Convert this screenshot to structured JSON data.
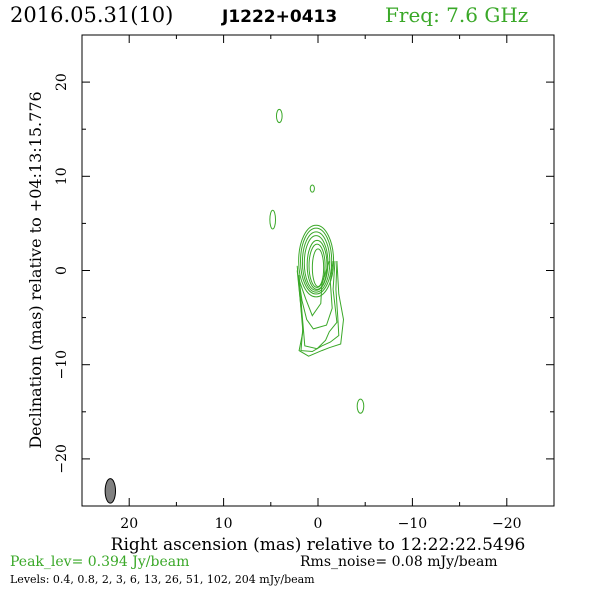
{
  "header": {
    "date": "2016.05.31(10)",
    "source": "J1222+0413",
    "freq": "Freq: 7.6 GHz"
  },
  "footer": {
    "peak": "Peak_lev=  0.394 Jy/beam",
    "rms": "Rms_noise= 0.08 mJy/beam",
    "levels": "Levels: 0.4, 0.8,   2,   3,   6,  13,  26,  51, 102, 204 mJy/beam"
  },
  "colors": {
    "contour": "#3aa828",
    "beam_fill": "#808080",
    "axis": "#000000",
    "freq_text": "#3aa828",
    "peak_text": "#3aa828"
  },
  "chart_data": {
    "type": "contour",
    "xlabel": "Right ascension (mas) relative to 12:22:22.5496",
    "ylabel": "Declination (mas) relative to +04:13:15.776",
    "xlim": [
      25,
      -25
    ],
    "ylim": [
      -25,
      25
    ],
    "xticks": [
      20,
      10,
      0,
      -10,
      -20
    ],
    "yticks": [
      20,
      10,
      0,
      -10,
      -20
    ],
    "xtick_labels": [
      "20",
      "10",
      "0",
      "−10",
      "−20"
    ],
    "ytick_labels": [
      "20",
      "10",
      "0",
      "−10",
      "−20"
    ],
    "levels_mJy": [
      0.4,
      0.8,
      2,
      3,
      6,
      13,
      26,
      51,
      102,
      204
    ],
    "core": {
      "x": 0.0,
      "y": 0.0
    },
    "core_rings": [
      {
        "x": 0.0,
        "y": 0.3,
        "rx": 0.6,
        "ry": 2.0
      },
      {
        "x": 0.1,
        "y": 0.5,
        "rx": 0.85,
        "ry": 2.3
      },
      {
        "x": 0.1,
        "y": 0.6,
        "rx": 1.05,
        "ry": 2.6
      },
      {
        "x": 0.2,
        "y": 0.8,
        "rx": 1.25,
        "ry": 2.9
      },
      {
        "x": 0.2,
        "y": 0.9,
        "rx": 1.45,
        "ry": 3.2
      },
      {
        "x": 0.2,
        "y": 1.0,
        "rx": 1.65,
        "ry": 3.5
      },
      {
        "x": 0.2,
        "y": 1.0,
        "rx": 1.85,
        "ry": 3.8
      }
    ],
    "jet_contours": [
      {
        "points": [
          [
            2.0,
            -1.0
          ],
          [
            1.3,
            -3.0
          ],
          [
            0.6,
            -4.8
          ],
          [
            -0.3,
            -3.5
          ],
          [
            -0.4,
            -1.5
          ],
          [
            -1.2,
            1.0
          ]
        ]
      },
      {
        "points": [
          [
            2.1,
            -0.5
          ],
          [
            1.7,
            -3.2
          ],
          [
            1.2,
            -5.2
          ],
          [
            0.5,
            -6.2
          ],
          [
            -0.9,
            -5.8
          ],
          [
            -1.5,
            -4.0
          ],
          [
            -1.3,
            -1.2
          ],
          [
            -1.6,
            1.0
          ]
        ]
      },
      {
        "points": [
          [
            2.0,
            -0.5
          ],
          [
            1.7,
            -4.5
          ],
          [
            1.4,
            -8.0
          ],
          [
            0.1,
            -8.3
          ],
          [
            -0.8,
            -7.4
          ],
          [
            -1.2,
            -6.5
          ],
          [
            -2.0,
            -5.5
          ],
          [
            -1.6,
            -2.0
          ],
          [
            -1.8,
            1.0
          ]
        ]
      },
      {
        "points": [
          [
            2.2,
            0.0
          ],
          [
            1.9,
            -3.0
          ],
          [
            1.6,
            -6.0
          ],
          [
            1.8,
            -8.5
          ],
          [
            0.6,
            -8.6
          ],
          [
            -0.4,
            -8.0
          ],
          [
            -1.3,
            -7.6
          ],
          [
            -2.2,
            -6.9
          ],
          [
            -2.1,
            -5.0
          ],
          [
            -1.9,
            -2.0
          ],
          [
            -2.0,
            1.0
          ]
        ]
      },
      {
        "points": [
          [
            2.2,
            0.5
          ],
          [
            1.9,
            -3.0
          ],
          [
            1.6,
            -6.5
          ],
          [
            2.0,
            -8.5
          ],
          [
            1.0,
            -9.1
          ],
          [
            -0.4,
            -8.5
          ],
          [
            -1.2,
            -8.2
          ],
          [
            -2.4,
            -7.8
          ],
          [
            -2.7,
            -5.2
          ],
          [
            -2.2,
            -2.5
          ],
          [
            -2.0,
            1.0
          ]
        ]
      }
    ],
    "islands": [
      {
        "x": 4.1,
        "y": 16.4,
        "rx": 0.3,
        "ry": 0.7
      },
      {
        "x": 0.6,
        "y": 8.7,
        "rx": 0.22,
        "ry": 0.38
      },
      {
        "x": 4.8,
        "y": 5.4,
        "rx": 0.3,
        "ry": 1.0
      },
      {
        "x": -4.5,
        "y": -14.4,
        "rx": 0.35,
        "ry": 0.75
      }
    ],
    "beam": {
      "x": 22.0,
      "y": -23.4,
      "major_mas": 2.6,
      "minor_mas": 1.1,
      "pa_deg": 0
    }
  }
}
